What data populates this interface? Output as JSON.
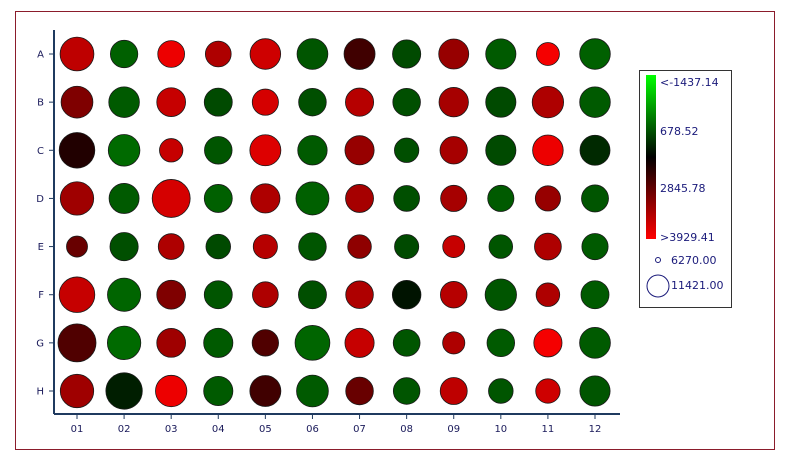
{
  "chart_data": {
    "type": "bubble-grid",
    "rows": [
      "A",
      "B",
      "C",
      "D",
      "E",
      "F",
      "G",
      "H"
    ],
    "columns": [
      "01",
      "02",
      "03",
      "04",
      "05",
      "06",
      "07",
      "08",
      "09",
      "10",
      "11",
      "12"
    ],
    "cells": [
      [
        {
          "size": 9000,
          "color": 3100
        },
        {
          "size": 5900,
          "color": -200
        },
        {
          "size": 5700,
          "color": 3700
        },
        {
          "size": 5300,
          "color": 2900
        },
        {
          "size": 7400,
          "color": 3300
        },
        {
          "size": 7500,
          "color": -100
        },
        {
          "size": 7600,
          "color": 1500
        },
        {
          "size": 6300,
          "color": 0
        },
        {
          "size": 7100,
          "color": 2600
        },
        {
          "size": 7200,
          "color": -150
        },
        {
          "size": 4200,
          "color": 3800
        },
        {
          "size": 7400,
          "color": -200
        }
      ],
      [
        {
          "size": 8000,
          "color": 2300
        },
        {
          "size": 7400,
          "color": -150
        },
        {
          "size": 6600,
          "color": 3200
        },
        {
          "size": 6200,
          "color": 0
        },
        {
          "size": 5400,
          "color": 3400
        },
        {
          "size": 6000,
          "color": -50
        },
        {
          "size": 6300,
          "color": 3000
        },
        {
          "size": 6000,
          "color": -50
        },
        {
          "size": 6800,
          "color": 2800
        },
        {
          "size": 7200,
          "color": 0
        },
        {
          "size": 7800,
          "color": 2900
        },
        {
          "size": 7400,
          "color": -150
        }
      ],
      [
        {
          "size": 10000,
          "color": 1100
        },
        {
          "size": 7900,
          "color": -300
        },
        {
          "size": 4300,
          "color": 3200
        },
        {
          "size": 6000,
          "color": -100
        },
        {
          "size": 7600,
          "color": 3500
        },
        {
          "size": 6800,
          "color": -150
        },
        {
          "size": 6700,
          "color": 2600
        },
        {
          "size": 4700,
          "color": -50
        },
        {
          "size": 5900,
          "color": 2800
        },
        {
          "size": 7200,
          "color": 0
        },
        {
          "size": 7400,
          "color": 3700
        },
        {
          "size": 7100,
          "color": 300
        }
      ],
      [
        {
          "size": 8800,
          "color": 2700
        },
        {
          "size": 7100,
          "color": -150
        },
        {
          "size": 11421,
          "color": 3400
        },
        {
          "size": 6200,
          "color": -200
        },
        {
          "size": 6700,
          "color": 2900
        },
        {
          "size": 8600,
          "color": -200
        },
        {
          "size": 6200,
          "color": 2800
        },
        {
          "size": 5300,
          "color": -50
        },
        {
          "size": 5400,
          "color": 2800
        },
        {
          "size": 5400,
          "color": -150
        },
        {
          "size": 5000,
          "color": 2600
        },
        {
          "size": 5800,
          "color": -100
        }
      ],
      [
        {
          "size": 3500,
          "color": 2000
        },
        {
          "size": 6300,
          "color": -50
        },
        {
          "size": 5300,
          "color": 2900
        },
        {
          "size": 4800,
          "color": 0
        },
        {
          "size": 4600,
          "color": 3000
        },
        {
          "size": 6000,
          "color": -100
        },
        {
          "size": 4400,
          "color": 2500
        },
        {
          "size": 4600,
          "color": 0
        },
        {
          "size": 3800,
          "color": 3200
        },
        {
          "size": 4400,
          "color": -100
        },
        {
          "size": 5700,
          "color": 2900
        },
        {
          "size": 5400,
          "color": -150
        }
      ],
      [
        {
          "size": 10000,
          "color": 3200
        },
        {
          "size": 8700,
          "color": -250
        },
        {
          "size": 6600,
          "color": 2300
        },
        {
          "size": 6200,
          "color": -100
        },
        {
          "size": 5300,
          "color": 2900
        },
        {
          "size": 6200,
          "color": -50
        },
        {
          "size": 6000,
          "color": 2900
        },
        {
          "size": 6500,
          "color": 500
        },
        {
          "size": 5600,
          "color": 3000
        },
        {
          "size": 7800,
          "color": -100
        },
        {
          "size": 4400,
          "color": 2900
        },
        {
          "size": 6200,
          "color": -150
        }
      ],
      [
        {
          "size": 11421,
          "color": 1700
        },
        {
          "size": 8800,
          "color": -300
        },
        {
          "size": 6600,
          "color": 2700
        },
        {
          "size": 6700,
          "color": -150
        },
        {
          "size": 5500,
          "color": 1700
        },
        {
          "size": 9600,
          "color": -250
        },
        {
          "size": 6700,
          "color": 3200
        },
        {
          "size": 5700,
          "color": -100
        },
        {
          "size": 3900,
          "color": 2900
        },
        {
          "size": 6000,
          "color": -150
        },
        {
          "size": 6300,
          "color": 3800
        },
        {
          "size": 7500,
          "color": -150
        }
      ],
      [
        {
          "size": 8800,
          "color": 2700
        },
        {
          "size": 10500,
          "color": 400
        },
        {
          "size": 7800,
          "color": 3700
        },
        {
          "size": 6700,
          "color": -150
        },
        {
          "size": 7600,
          "color": 1500
        },
        {
          "size": 8000,
          "color": -150
        },
        {
          "size": 6000,
          "color": 2000
        },
        {
          "size": 5600,
          "color": -100
        },
        {
          "size": 5800,
          "color": 3100
        },
        {
          "size": 4800,
          "color": -100
        },
        {
          "size": 4700,
          "color": 3300
        },
        {
          "size": 7200,
          "color": -100
        }
      ]
    ],
    "color_scale": {
      "labels": [
        "<-1437.14",
        "678.52",
        "2845.78",
        ">3929.41"
      ],
      "min": -1437.14,
      "mid": 678.52,
      "max": 3929.41,
      "colors": [
        "#00ff00",
        "#000000",
        "#ff0000"
      ]
    },
    "size_scale": {
      "labels": [
        "6270.00",
        "11421.00"
      ],
      "values": [
        6270,
        11421
      ]
    },
    "axis_color": "#1f3a5f",
    "tick_text_color": "#1a1a5a"
  }
}
